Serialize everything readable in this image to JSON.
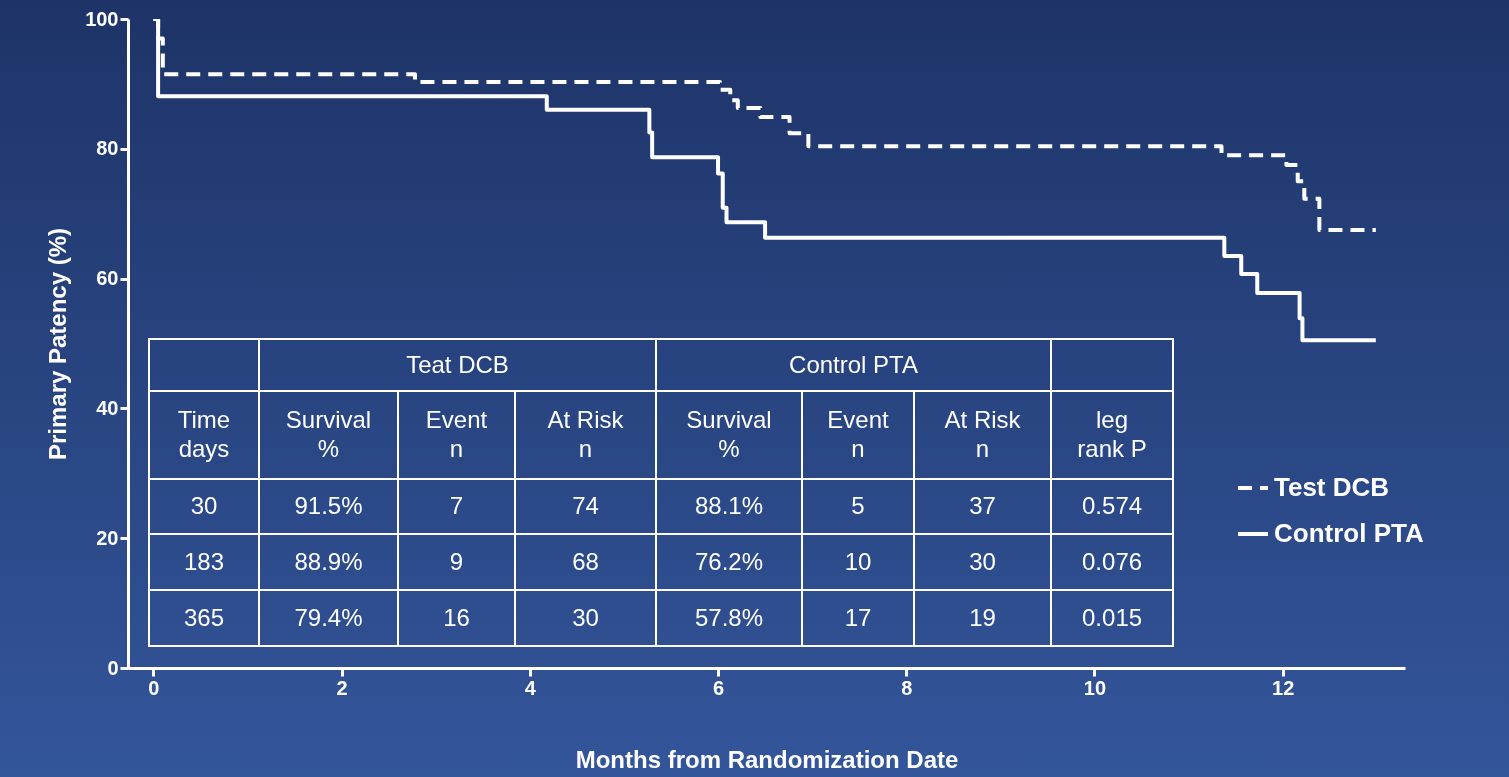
{
  "chart_data": {
    "type": "step",
    "xlabel": "Months from Randomization Date",
    "ylabel": "Primary Patency (%)",
    "xlim": [
      -0.27,
      13.3
    ],
    "ylim": [
      0,
      100
    ],
    "xticks": [
      0,
      2,
      4,
      6,
      8,
      10,
      12
    ],
    "yticks": [
      0,
      20,
      40,
      60,
      80,
      100
    ],
    "grid": false,
    "legend": "bottom right",
    "series": [
      {
        "name": "Test DCB",
        "color": "#ffffff",
        "line_style": "dashed",
        "x": [
          0,
          0.05,
          0.1,
          2.78,
          6.02,
          6.13,
          6.21,
          6.45,
          6.76,
          6.96,
          11.35,
          12.04,
          12.16,
          12.23,
          12.39,
          12.99
        ],
        "values": [
          100,
          97,
          91.5,
          90.3,
          89.1,
          87.5,
          86.3,
          84.9,
          82.4,
          80.4,
          79.0,
          77.5,
          75,
          72.3,
          67.5,
          67.5
        ]
      },
      {
        "name": "Control PTA",
        "color": "#ffffff",
        "line_style": "solid",
        "x": [
          0,
          0.05,
          4.18,
          5.27,
          5.3,
          6.0,
          6.05,
          6.09,
          6.5,
          11.38,
          11.56,
          11.73,
          12.18,
          12.21,
          12.99
        ],
        "values": [
          100,
          88.1,
          86.0,
          82.5,
          78.7,
          76.2,
          70.9,
          68.7,
          66.3,
          63.5,
          60.7,
          57.8,
          53.9,
          50.5,
          50.5
        ]
      }
    ],
    "annotations": [
      "Teat DCB",
      "Control PTA",
      "Time\ndays",
      "Survival\n%",
      "Event\nn",
      "At Risk\nn",
      "Survival\n%",
      "Event\nn",
      "At Risk\nn",
      "leg\nrank P",
      "30",
      "91.5%",
      "7",
      "74",
      "88.1%",
      "5",
      "37",
      "0.574",
      "183",
      "88.9%",
      "9",
      "68",
      "76.2%",
      "10",
      "30",
      "0.076",
      "365",
      "79.4%",
      "16",
      "30",
      "57.8%",
      "17",
      "19",
      "0.015"
    ]
  }
}
